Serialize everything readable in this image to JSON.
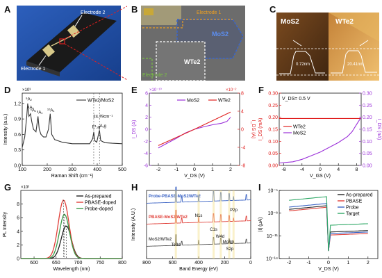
{
  "panels": {
    "A": {
      "letter": "A",
      "label_e1": "Electrode 1",
      "label_e2": "Electrode 2"
    },
    "B": {
      "letter": "B",
      "label_e1": "Electrode 1",
      "label_e2": "Electrode 2",
      "label_mos2": "MoS2",
      "label_wte2": "WTe2"
    },
    "C": {
      "letter": "C",
      "label_mos2": "MoS2",
      "label_wte2": "WTe2",
      "h1": "0.72nm",
      "h2": "20.41nm"
    },
    "D": {
      "letter": "D"
    },
    "E": {
      "letter": "E"
    },
    "F": {
      "letter": "F"
    },
    "G": {
      "letter": "G"
    },
    "H": {
      "letter": "H"
    },
    "I": {
      "letter": "I"
    }
  },
  "chart_data": [
    {
      "id": "D",
      "type": "line",
      "xlabel": "Raman Shift (cm⁻¹)",
      "ylabel": "Intensity (a.u.)",
      "y_exponent": "×10³",
      "xlim": [
        100,
        500
      ],
      "ylim": [
        0.0,
        1.4
      ],
      "xticks": [
        100,
        200,
        300,
        400,
        500
      ],
      "yticks": [
        0.0,
        0.3,
        0.6,
        0.9,
        1.2
      ],
      "legend": "WTe2/MoS2",
      "annotations": [
        "⁹A₂",
        "⁴A₁",
        "⁸A₁",
        "⁵A₁",
        "¹⁰A₁",
        "E¹₂g",
        "A₁g",
        "24.79cm⁻¹"
      ],
      "series": [
        {
          "name": "WTe2/MoS2",
          "points": [
            [
              100,
              0.35
            ],
            [
              110,
              0.55
            ],
            [
              118,
              0.95
            ],
            [
              122,
              1.2
            ],
            [
              127,
              0.95
            ],
            [
              133,
              1.0
            ],
            [
              138,
              0.85
            ],
            [
              145,
              0.7
            ],
            [
              155,
              0.65
            ],
            [
              163,
              0.95
            ],
            [
              168,
              0.7
            ],
            [
              175,
              0.6
            ],
            [
              185,
              0.55
            ],
            [
              195,
              0.55
            ],
            [
              205,
              0.7
            ],
            [
              212,
              1.0
            ],
            [
              218,
              0.6
            ],
            [
              230,
              0.5
            ],
            [
              260,
              0.45
            ],
            [
              300,
              0.42
            ],
            [
              340,
              0.42
            ],
            [
              370,
              0.42
            ],
            [
              382,
              0.52
            ],
            [
              386,
              0.65
            ],
            [
              390,
              0.48
            ],
            [
              398,
              0.45
            ],
            [
              405,
              0.6
            ],
            [
              409,
              0.68
            ],
            [
              414,
              0.48
            ],
            [
              430,
              0.44
            ],
            [
              460,
              0.43
            ],
            [
              500,
              0.42
            ]
          ]
        }
      ]
    },
    {
      "id": "E",
      "type": "line",
      "xlabel": "V_DS (V)",
      "ylabel_left": "I_DS (A)",
      "ylabel_right": "I_DS (A)",
      "left_exponent": "×10⁻¹⁰",
      "right_exponent": "×10⁻²",
      "xlim": [
        -2.5,
        2.5
      ],
      "ylim_left": [
        -6,
        6
      ],
      "ylim_right": [
        -8,
        8
      ],
      "xticks": [
        -2,
        -1,
        0,
        1,
        2
      ],
      "yticks_left": [
        -6,
        -4,
        -2,
        0,
        2,
        4,
        6
      ],
      "yticks_right": [
        -8,
        -4,
        0,
        4,
        8
      ],
      "series": [
        {
          "name": "MoS2",
          "color": "#9b30d9",
          "axis": "left",
          "points": [
            [
              -2,
              -3.1
            ],
            [
              -1.5,
              -2.3
            ],
            [
              -1,
              -1.5
            ],
            [
              -0.5,
              -0.6
            ],
            [
              0,
              0
            ],
            [
              0.5,
              0.4
            ],
            [
              1,
              0.75
            ],
            [
              1.5,
              1.0
            ],
            [
              1.8,
              1.3
            ],
            [
              2,
              2.0
            ]
          ]
        },
        {
          "name": "WTe2",
          "color": "#e0201f",
          "axis": "right",
          "points": [
            [
              -2,
              -3.6
            ],
            [
              -1,
              -1.8
            ],
            [
              0,
              0
            ],
            [
              1,
              1.9
            ],
            [
              2,
              3.8
            ]
          ]
        }
      ]
    },
    {
      "id": "F",
      "type": "line",
      "note": "V_DS= 0.5 V",
      "xlabel": "V_GS (V)",
      "ylabel_left": "I_DS (mA)",
      "ylabel_right": "I_DS (nA)",
      "xlim": [
        -9,
        9
      ],
      "ylim_left": [
        0.0,
        0.3
      ],
      "ylim_right": [
        0.0,
        0.3
      ],
      "xticks": [
        -8,
        -4,
        0,
        4,
        8
      ],
      "yticks_left": [
        0.0,
        0.05,
        0.1,
        0.15,
        0.2,
        0.25,
        0.3
      ],
      "yticks_right": [
        0.0,
        0.05,
        0.1,
        0.15,
        0.2,
        0.25,
        0.3
      ],
      "series": [
        {
          "name": "WTe2",
          "color": "#e0201f",
          "axis": "left",
          "points": [
            [
              -9,
              0.195
            ],
            [
              9,
              0.195
            ]
          ]
        },
        {
          "name": "MoS2",
          "color": "#9b30d9",
          "axis": "right",
          "points": [
            [
              -9,
              0.01
            ],
            [
              -6,
              0.015
            ],
            [
              -4,
              0.025
            ],
            [
              -2,
              0.04
            ],
            [
              0,
              0.055
            ],
            [
              2,
              0.075
            ],
            [
              4,
              0.095
            ],
            [
              6,
              0.12
            ],
            [
              7,
              0.14
            ],
            [
              8,
              0.17
            ],
            [
              9,
              0.2
            ]
          ]
        }
      ]
    },
    {
      "id": "G",
      "type": "line",
      "xlabel": "Wavelength (nm)",
      "ylabel": "PL Intensity",
      "y_exponent": "×10²",
      "xlim": [
        570,
        800
      ],
      "ylim": [
        0,
        10
      ],
      "xticks": [
        600,
        650,
        700,
        750,
        800
      ],
      "yticks": [
        0,
        2,
        4,
        6,
        8
      ],
      "series": [
        {
          "name": "As-prepared",
          "color": "#222222",
          "peak": 673,
          "amp": 4.8,
          "width": 16
        },
        {
          "name": "PBASE-doped",
          "color": "#e0403a",
          "peak": 667,
          "amp": 8.6,
          "width": 17
        },
        {
          "name": "Probe-doped",
          "color": "#3a9a48",
          "peak": 669,
          "amp": 6.5,
          "width": 16
        }
      ]
    },
    {
      "id": "H",
      "type": "line",
      "xlabel": "Band Energy (eV)",
      "ylabel": "Intensity (A.U.)",
      "xlim": [
        800,
        0
      ],
      "xticks": [
        800,
        600,
        400,
        200,
        0
      ],
      "annotations": [
        "Te3d",
        "N1s",
        "C1s",
        "W4d",
        "Mo3d",
        "S2p",
        "P2p"
      ],
      "series": [
        {
          "name": "Probe-PBASE-MoS2/WTe2",
          "color": "#3b63c4"
        },
        {
          "name": "PBASE-MoS2/WTe2",
          "color": "#e0403a"
        },
        {
          "name": "MoS2/WTe2",
          "color": "#555555"
        }
      ]
    },
    {
      "id": "I",
      "type": "line",
      "xlabel": "V_DS (V)",
      "ylabel": "|I| (μA)",
      "xlim": [
        -2.5,
        2.5
      ],
      "ylim_exp": [
        -14,
        -5
      ],
      "xticks": [
        -2,
        -1,
        0,
        1,
        2
      ],
      "yticks": [
        "10⁻⁵",
        "10⁻⁸",
        "10⁻¹¹",
        "10⁻¹⁴"
      ],
      "series": [
        {
          "name": "As-prepared",
          "color": "#222222",
          "left": -7.5,
          "right": -10.5
        },
        {
          "name": "PBASE",
          "color": "#e0403a",
          "left": -7.7,
          "right": -10.9
        },
        {
          "name": "Probe",
          "color": "#3b63c4",
          "left": -7.2,
          "right": -10.7
        },
        {
          "name": "Target",
          "color": "#2fa866",
          "left": -6.3,
          "right": -9.6
        }
      ]
    }
  ]
}
